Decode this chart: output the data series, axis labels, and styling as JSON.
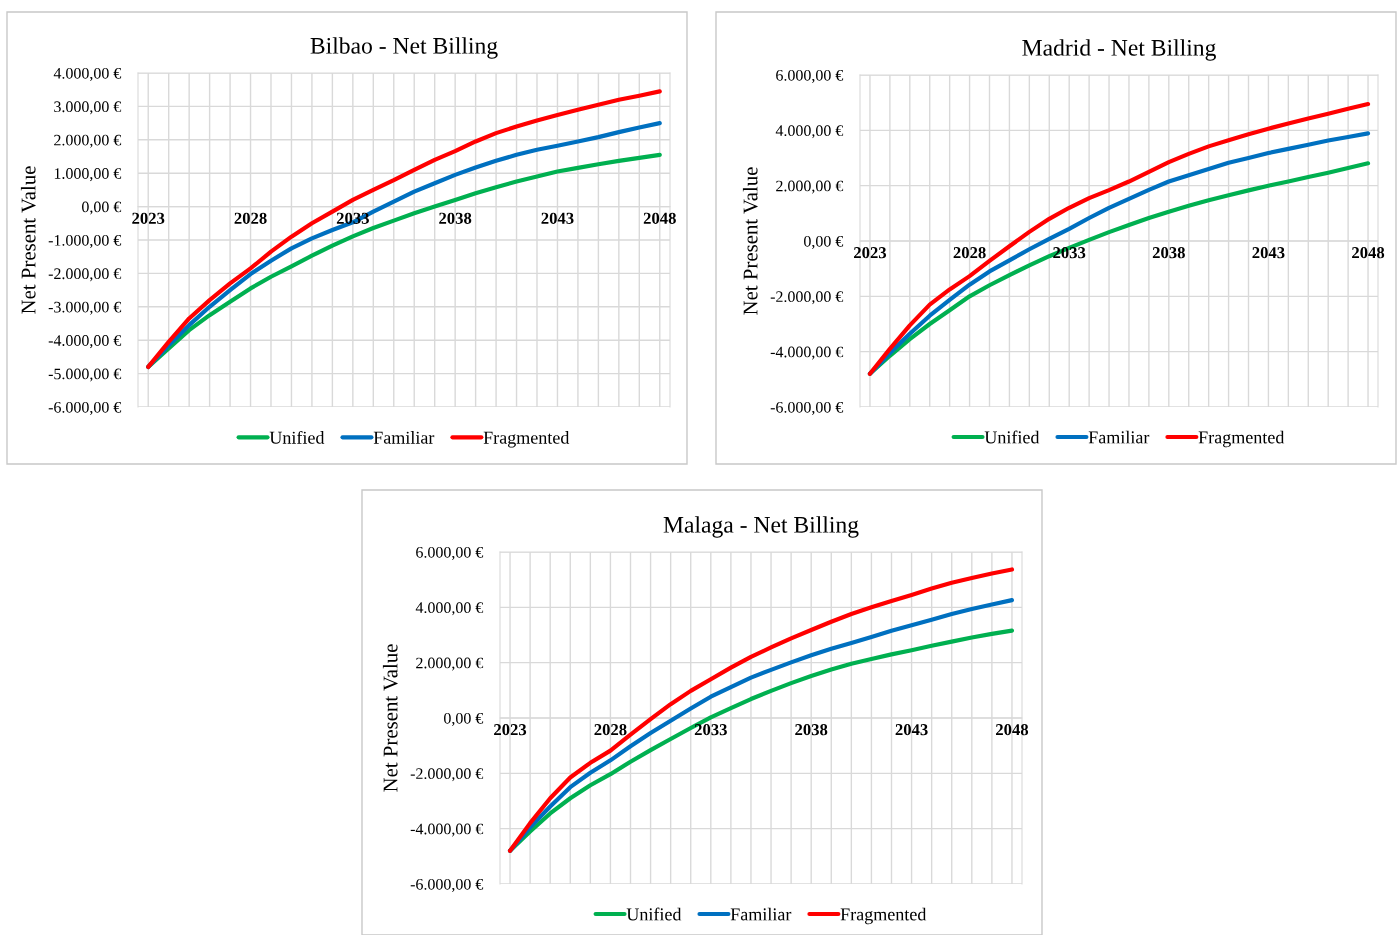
{
  "chart_data": [
    {
      "type": "line",
      "title": "Bilbao - Net Billing",
      "ylabel": "Net Present Value",
      "x": [
        2023,
        2024,
        2025,
        2026,
        2027,
        2028,
        2029,
        2030,
        2031,
        2032,
        2033,
        2034,
        2035,
        2036,
        2037,
        2038,
        2039,
        2040,
        2041,
        2042,
        2043,
        2044,
        2045,
        2046,
        2047,
        2048
      ],
      "series": [
        {
          "name": "Unified",
          "color": "#00b050",
          "values": [
            -4800,
            -4250,
            -3700,
            -3250,
            -2850,
            -2450,
            -2100,
            -1790,
            -1470,
            -1170,
            -890,
            -640,
            -420,
            -200,
            0,
            200,
            400,
            580,
            750,
            900,
            1050,
            1160,
            1270,
            1370,
            1460,
            1550
          ]
        },
        {
          "name": "Familiar",
          "color": "#0070c0",
          "values": [
            -4800,
            -4150,
            -3550,
            -3000,
            -2500,
            -2020,
            -1620,
            -1250,
            -950,
            -700,
            -470,
            -150,
            150,
            450,
            700,
            950,
            1170,
            1370,
            1550,
            1700,
            1820,
            1950,
            2080,
            2230,
            2370,
            2500
          ]
        },
        {
          "name": "Fragmented",
          "color": "#ff0000",
          "values": [
            -4800,
            -4050,
            -3350,
            -2800,
            -2300,
            -1850,
            -1350,
            -900,
            -500,
            -150,
            200,
            500,
            790,
            1100,
            1400,
            1660,
            1950,
            2200,
            2400,
            2580,
            2740,
            2900,
            3050,
            3200,
            3320,
            3450
          ]
        }
      ],
      "xlim": [
        2022.5,
        2048.5
      ],
      "xticks": [
        2023,
        {
          "value": 2024,
          "label": null
        },
        {
          "value": 2025,
          "label": null
        },
        {
          "value": 2026,
          "label": null
        },
        {
          "value": 2027,
          "label": null
        },
        2028,
        {
          "value": 2029,
          "label": null
        },
        {
          "value": 2030,
          "label": null
        },
        {
          "value": 2031,
          "label": null
        },
        {
          "value": 2032,
          "label": null
        },
        2033,
        {
          "value": 2034,
          "label": null
        },
        {
          "value": 2035,
          "label": null
        },
        {
          "value": 2036,
          "label": null
        },
        {
          "value": 2037,
          "label": null
        },
        2038,
        {
          "value": 2039,
          "label": null
        },
        {
          "value": 2040,
          "label": null
        },
        {
          "value": 2041,
          "label": null
        },
        {
          "value": 2042,
          "label": null
        },
        2043,
        {
          "value": 2044,
          "label": null
        },
        {
          "value": 2045,
          "label": null
        },
        {
          "value": 2046,
          "label": null
        },
        {
          "value": 2047,
          "label": null
        },
        2048
      ],
      "ylim": [
        -6000,
        4000
      ],
      "yticks": [
        {
          "value": -6000,
          "label": "-6.000,00 €"
        },
        {
          "value": -5000,
          "label": "-5.000,00 €"
        },
        {
          "value": -4000,
          "label": "-4.000,00 €"
        },
        {
          "value": -3000,
          "label": "-3.000,00 €"
        },
        {
          "value": -2000,
          "label": "-2.000,00 €"
        },
        {
          "value": -1000,
          "label": "-1.000,00 €"
        },
        {
          "value": 0,
          "label": "0,00 €"
        },
        {
          "value": 1000,
          "label": "1.000,00 €"
        },
        {
          "value": 2000,
          "label": "2.000,00 €"
        },
        {
          "value": 3000,
          "label": "3.000,00 €"
        },
        {
          "value": 4000,
          "label": "4.000,00 €"
        }
      ],
      "grid": true,
      "legend": "bottom",
      "line_style": "solid",
      "marker": "none"
    },
    {
      "type": "line",
      "title": "Madrid - Net Billing",
      "ylabel": "Net Present Value",
      "x": [
        2023,
        2024,
        2025,
        2026,
        2027,
        2028,
        2029,
        2030,
        2031,
        2032,
        2033,
        2034,
        2035,
        2036,
        2037,
        2038,
        2039,
        2040,
        2041,
        2042,
        2043,
        2044,
        2045,
        2046,
        2047,
        2048
      ],
      "series": [
        {
          "name": "Unified",
          "color": "#00b050",
          "values": [
            -4800,
            -4150,
            -3550,
            -3000,
            -2500,
            -2000,
            -1600,
            -1230,
            -880,
            -550,
            -250,
            40,
            320,
            580,
            830,
            1060,
            1270,
            1470,
            1650,
            1830,
            2000,
            2150,
            2310,
            2470,
            2640,
            2810
          ]
        },
        {
          "name": "Familiar",
          "color": "#0070c0",
          "values": [
            -4800,
            -4050,
            -3350,
            -2700,
            -2130,
            -1580,
            -1100,
            -700,
            -300,
            80,
            440,
            830,
            1200,
            1520,
            1850,
            2150,
            2380,
            2600,
            2830,
            3000,
            3180,
            3330,
            3480,
            3630,
            3760,
            3890
          ]
        },
        {
          "name": "Fragmented",
          "color": "#ff0000",
          "values": [
            -4800,
            -3900,
            -3050,
            -2300,
            -1750,
            -1270,
            -720,
            -190,
            330,
            800,
            1200,
            1550,
            1840,
            2150,
            2500,
            2850,
            3150,
            3420,
            3640,
            3860,
            4060,
            4250,
            4430,
            4600,
            4780,
            4950
          ]
        }
      ],
      "xlim": [
        2022.5,
        2048.5
      ],
      "xticks": [
        2023,
        {
          "value": 2024,
          "label": null
        },
        {
          "value": 2025,
          "label": null
        },
        {
          "value": 2026,
          "label": null
        },
        {
          "value": 2027,
          "label": null
        },
        2028,
        {
          "value": 2029,
          "label": null
        },
        {
          "value": 2030,
          "label": null
        },
        {
          "value": 2031,
          "label": null
        },
        {
          "value": 2032,
          "label": null
        },
        2033,
        {
          "value": 2034,
          "label": null
        },
        {
          "value": 2035,
          "label": null
        },
        {
          "value": 2036,
          "label": null
        },
        {
          "value": 2037,
          "label": null
        },
        2038,
        {
          "value": 2039,
          "label": null
        },
        {
          "value": 2040,
          "label": null
        },
        {
          "value": 2041,
          "label": null
        },
        {
          "value": 2042,
          "label": null
        },
        2043,
        {
          "value": 2044,
          "label": null
        },
        {
          "value": 2045,
          "label": null
        },
        {
          "value": 2046,
          "label": null
        },
        {
          "value": 2047,
          "label": null
        },
        2048
      ],
      "ylim": [
        -6000,
        6000
      ],
      "yticks": [
        {
          "value": -6000,
          "label": "-6.000,00 €"
        },
        {
          "value": -4000,
          "label": "-4.000,00 €"
        },
        {
          "value": -2000,
          "label": "-2.000,00 €"
        },
        {
          "value": 0,
          "label": "0,00 €"
        },
        {
          "value": 2000,
          "label": "2.000,00 €"
        },
        {
          "value": 4000,
          "label": "4.000,00 €"
        },
        {
          "value": 6000,
          "label": "6.000,00 €"
        }
      ],
      "grid": true,
      "legend": "bottom",
      "line_style": "solid",
      "marker": "none"
    },
    {
      "type": "line",
      "title": "Malaga - Net Billing",
      "ylabel": "Net Present Value",
      "x": [
        2023,
        2024,
        2025,
        2026,
        2027,
        2028,
        2029,
        2030,
        2031,
        2032,
        2033,
        2034,
        2035,
        2036,
        2037,
        2038,
        2039,
        2040,
        2041,
        2042,
        2043,
        2044,
        2045,
        2046,
        2047,
        2048
      ],
      "series": [
        {
          "name": "Unified",
          "color": "#00b050",
          "values": [
            -4800,
            -4100,
            -3450,
            -2900,
            -2430,
            -2030,
            -1580,
            -1160,
            -760,
            -360,
            25,
            360,
            685,
            980,
            1260,
            1520,
            1750,
            1960,
            2130,
            2300,
            2450,
            2610,
            2760,
            2910,
            3040,
            3160
          ]
        },
        {
          "name": "Familiar",
          "color": "#0070c0",
          "values": [
            -4800,
            -3950,
            -3200,
            -2500,
            -1980,
            -1530,
            -1020,
            -540,
            -100,
            340,
            770,
            1120,
            1460,
            1740,
            2010,
            2270,
            2500,
            2710,
            2930,
            3150,
            3350,
            3550,
            3760,
            3940,
            4100,
            4260
          ]
        },
        {
          "name": "Fragmented",
          "color": "#ff0000",
          "values": [
            -4800,
            -3800,
            -2900,
            -2150,
            -1620,
            -1180,
            -600,
            -40,
            500,
            980,
            1400,
            1820,
            2210,
            2550,
            2880,
            3180,
            3480,
            3760,
            4000,
            4230,
            4450,
            4680,
            4890,
            5060,
            5220,
            5370
          ]
        }
      ],
      "xlim": [
        2022.5,
        2048.5
      ],
      "xticks": [
        2023,
        {
          "value": 2024,
          "label": null
        },
        {
          "value": 2025,
          "label": null
        },
        {
          "value": 2026,
          "label": null
        },
        {
          "value": 2027,
          "label": null
        },
        2028,
        {
          "value": 2029,
          "label": null
        },
        {
          "value": 2030,
          "label": null
        },
        {
          "value": 2031,
          "label": null
        },
        {
          "value": 2032,
          "label": null
        },
        2033,
        {
          "value": 2034,
          "label": null
        },
        {
          "value": 2035,
          "label": null
        },
        {
          "value": 2036,
          "label": null
        },
        {
          "value": 2037,
          "label": null
        },
        2038,
        {
          "value": 2039,
          "label": null
        },
        {
          "value": 2040,
          "label": null
        },
        {
          "value": 2041,
          "label": null
        },
        {
          "value": 2042,
          "label": null
        },
        2043,
        {
          "value": 2044,
          "label": null
        },
        {
          "value": 2045,
          "label": null
        },
        {
          "value": 2046,
          "label": null
        },
        {
          "value": 2047,
          "label": null
        },
        2048
      ],
      "ylim": [
        -6000,
        6000
      ],
      "yticks": [
        {
          "value": -6000,
          "label": "-6.000,00 €"
        },
        {
          "value": -4000,
          "label": "-4.000,00 €"
        },
        {
          "value": -2000,
          "label": "-2.000,00 €"
        },
        {
          "value": 0,
          "label": "0,00 €"
        },
        {
          "value": 2000,
          "label": "2.000,00 €"
        },
        {
          "value": 4000,
          "label": "4.000,00 €"
        },
        {
          "value": 6000,
          "label": "6.000,00 €"
        }
      ],
      "grid": true,
      "legend": "bottom",
      "line_style": "solid",
      "marker": "none"
    }
  ]
}
